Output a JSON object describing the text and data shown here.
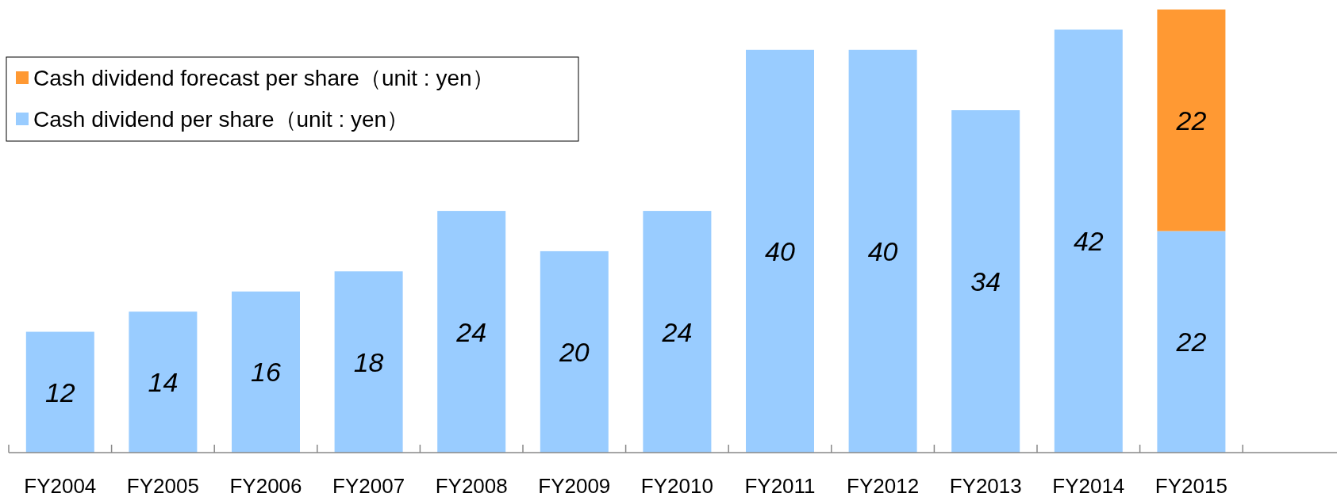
{
  "chart_data": {
    "type": "bar",
    "stacked": true,
    "data_labels": true,
    "legend": "top left",
    "categories": [
      "FY2004",
      "FY2005",
      "FY2006",
      "FY2007",
      "FY2008",
      "FY2009",
      "FY2010",
      "FY2011",
      "FY2012",
      "FY2013",
      "FY2014",
      "FY2015"
    ],
    "series": [
      {
        "name": "Cash dividend per share（unit : yen）",
        "color": "#99ccff",
        "values": [
          12,
          14,
          16,
          18,
          24,
          20,
          24,
          40,
          40,
          34,
          42,
          22
        ]
      },
      {
        "name": "Cash dividend forecast per share（unit : yen）",
        "color": "#ff9933",
        "values": [
          null,
          null,
          null,
          null,
          null,
          null,
          null,
          null,
          null,
          null,
          null,
          22
        ]
      }
    ]
  }
}
